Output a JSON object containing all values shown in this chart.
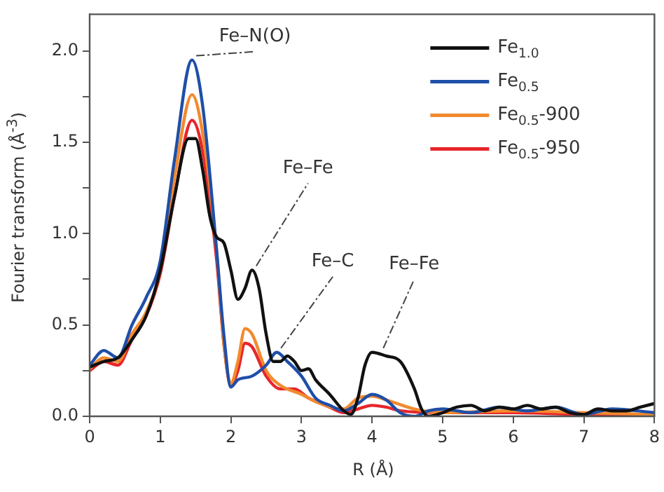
{
  "chart_data": {
    "type": "line",
    "xlabel": "R (Å)",
    "ylabel": "Fourier transform (Å$^{-3}$)",
    "xlim": [
      0,
      8
    ],
    "xticks": [
      0,
      1,
      2,
      3,
      4,
      5,
      6,
      7,
      8
    ],
    "ylim": [
      0,
      2.2
    ],
    "yticks": [
      {
        "value": 0,
        "label": "0.0"
      },
      {
        "value": 0.25,
        "label": null
      },
      {
        "value": 0.5,
        "label": "0.5"
      },
      {
        "value": 0.75,
        "label": null
      },
      {
        "value": 1,
        "label": "1.0"
      },
      {
        "value": 1.25,
        "label": null
      },
      {
        "value": 1.5,
        "label": "1.5"
      },
      {
        "value": 1.75,
        "label": null
      },
      {
        "value": 2,
        "label": "2.0"
      }
    ],
    "grid": false,
    "legend": "top right",
    "marker": "none",
    "line_style": "solid",
    "series": [
      {
        "name": "Fe$_{1.0}$",
        "color": "#111111",
        "x": [
          0,
          0.2,
          0.4,
          0.6,
          0.8,
          1.0,
          1.2,
          1.4,
          1.5,
          1.6,
          1.7,
          1.8,
          1.9,
          2.0,
          2.1,
          2.2,
          2.3,
          2.4,
          2.5,
          2.6,
          2.7,
          2.8,
          2.9,
          3.0,
          3.1,
          3.2,
          3.4,
          3.6,
          3.7,
          3.8,
          3.9,
          4.0,
          4.2,
          4.4,
          4.6,
          4.7,
          4.8,
          5.0,
          5.2,
          5.4,
          5.6,
          5.8,
          6.0,
          6.2,
          6.4,
          6.6,
          6.8,
          7.0,
          7.2,
          7.4,
          7.6,
          7.8,
          8.0
        ],
        "values": [
          0.27,
          0.3,
          0.32,
          0.42,
          0.55,
          0.8,
          1.2,
          1.52,
          1.52,
          1.35,
          1.1,
          0.98,
          0.95,
          0.8,
          0.64,
          0.7,
          0.8,
          0.7,
          0.45,
          0.3,
          0.3,
          0.33,
          0.3,
          0.25,
          0.26,
          0.2,
          0.12,
          0.03,
          0.01,
          0.1,
          0.28,
          0.35,
          0.33,
          0.3,
          0.15,
          0.04,
          0.0,
          0.02,
          0.05,
          0.06,
          0.03,
          0.05,
          0.04,
          0.06,
          0.04,
          0.05,
          0.02,
          0.01,
          0.04,
          0.03,
          0.03,
          0.05,
          0.07
        ]
      },
      {
        "name": "Fe$_{0.5}$",
        "color": "#1f4fa8",
        "x": [
          0,
          0.2,
          0.4,
          0.6,
          0.8,
          1.0,
          1.2,
          1.45,
          1.6,
          1.8,
          1.9,
          2.0,
          2.1,
          2.3,
          2.5,
          2.65,
          2.8,
          3.0,
          3.2,
          3.4,
          3.6,
          3.8,
          4.0,
          4.2,
          4.4,
          4.6,
          4.8,
          5.0,
          5.4,
          5.8,
          6.2,
          6.6,
          7.0,
          7.4,
          8.0
        ],
        "values": [
          0.28,
          0.36,
          0.32,
          0.5,
          0.65,
          0.85,
          1.4,
          1.95,
          1.7,
          0.9,
          0.45,
          0.16,
          0.2,
          0.22,
          0.28,
          0.35,
          0.3,
          0.22,
          0.1,
          0.06,
          0.03,
          0.07,
          0.12,
          0.09,
          0.02,
          0.0,
          0.03,
          0.04,
          0.02,
          0.05,
          0.03,
          0.05,
          0.01,
          0.04,
          0.02
        ]
      },
      {
        "name": "Fe$_{0.5}$-900",
        "color": "#f28a2e",
        "x": [
          0,
          0.2,
          0.4,
          0.6,
          0.8,
          1.0,
          1.2,
          1.45,
          1.6,
          1.8,
          1.9,
          2.0,
          2.1,
          2.2,
          2.3,
          2.5,
          2.7,
          3.0,
          3.2,
          3.6,
          3.8,
          4.0,
          4.2,
          4.6,
          5.0,
          6.0,
          7.0,
          8.0
        ],
        "values": [
          0.26,
          0.32,
          0.3,
          0.45,
          0.57,
          0.8,
          1.3,
          1.76,
          1.55,
          0.9,
          0.4,
          0.18,
          0.3,
          0.48,
          0.45,
          0.25,
          0.17,
          0.12,
          0.08,
          0.04,
          0.1,
          0.11,
          0.09,
          0.04,
          0.02,
          0.03,
          0.02,
          0.01
        ]
      },
      {
        "name": "Fe$_{0.5}$-950",
        "color": "#e8262b",
        "x": [
          0,
          0.2,
          0.4,
          0.6,
          0.8,
          1.0,
          1.2,
          1.45,
          1.6,
          1.8,
          1.9,
          2.0,
          2.1,
          2.2,
          2.3,
          2.5,
          2.7,
          2.9,
          3.1,
          3.4,
          3.6,
          3.8,
          4.0,
          4.2,
          4.4,
          5.0,
          6.0,
          7.0,
          8.0
        ],
        "values": [
          0.25,
          0.3,
          0.28,
          0.42,
          0.55,
          0.78,
          1.2,
          1.62,
          1.45,
          0.85,
          0.4,
          0.17,
          0.25,
          0.4,
          0.38,
          0.22,
          0.15,
          0.15,
          0.1,
          0.05,
          0.02,
          0.04,
          0.06,
          0.05,
          0.03,
          0.02,
          0.02,
          0.01,
          0.01
        ]
      }
    ],
    "annotations": [
      {
        "text": "Fe–N(O)",
        "x": 1.45,
        "y": 1.95
      },
      {
        "text": "Fe–Fe",
        "x": 2.3,
        "y": 0.8
      },
      {
        "text": "Fe–C",
        "x": 2.65,
        "y": 0.35
      },
      {
        "text": "Fe–Fe",
        "x": 4.1,
        "y": 0.35
      }
    ]
  }
}
